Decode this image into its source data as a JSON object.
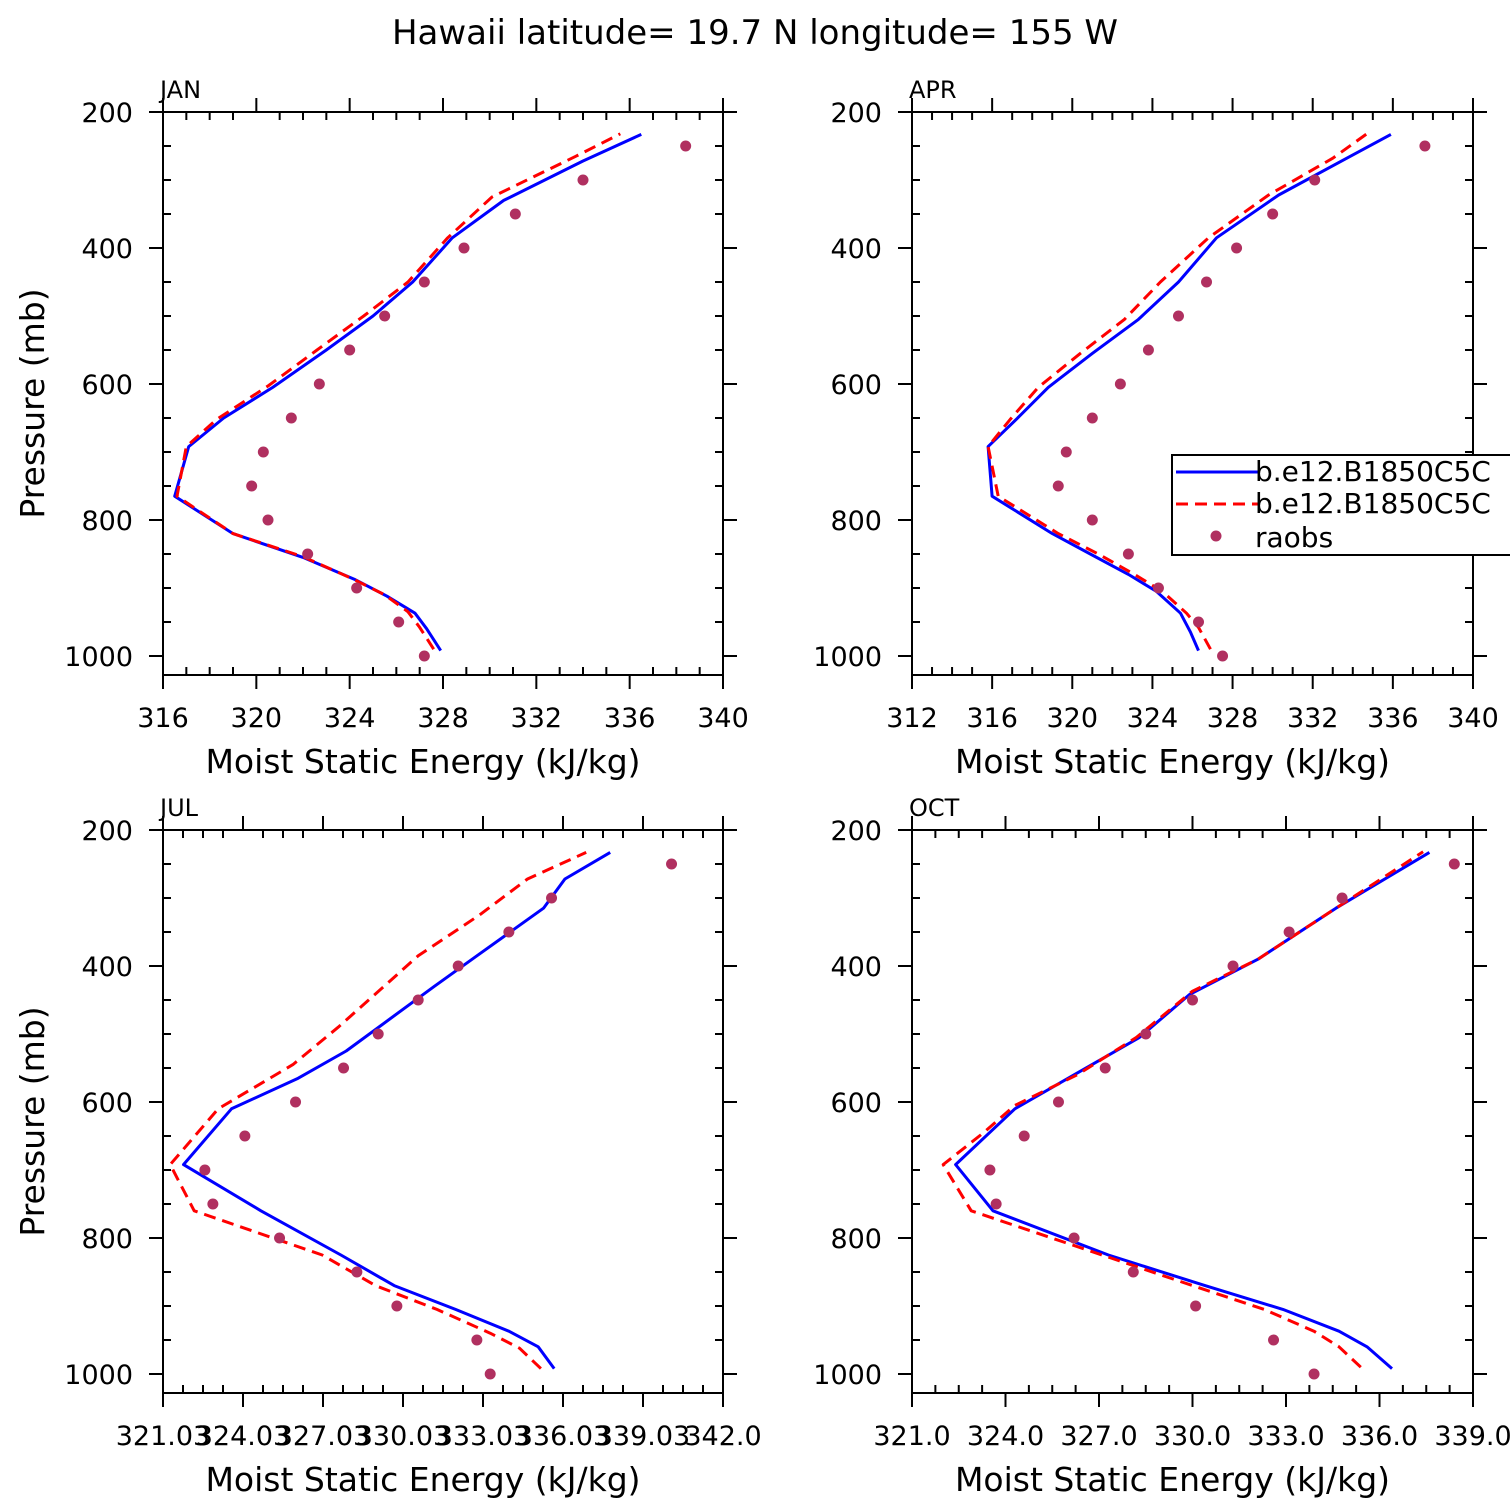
{
  "title": "Hawaii  latitude= 19.7 N longitude= 155 W",
  "colors": {
    "model_a": "#0000ff",
    "model_b": "#ff0000",
    "raobs": "#b03060"
  },
  "legend": {
    "entries": [
      {
        "label": "b.e12.B1850C5C",
        "style": "solid-blue"
      },
      {
        "label": "b.e12.B1850C5C",
        "style": "dashed-red"
      },
      {
        "label": "raobs",
        "style": "dot-magenta"
      }
    ]
  },
  "chart_data": [
    {
      "type": "line",
      "panel": "JAN",
      "xlabel": "Moist Static Energy (kJ/kg)",
      "ylabel": "Pressure (mb)",
      "xlim": [
        316,
        340
      ],
      "xticks": [
        316,
        320,
        324,
        328,
        332,
        336,
        340
      ],
      "xtick_labels": [
        "316",
        "320",
        "324",
        "328",
        "332",
        "336",
        "340"
      ],
      "ylim": [
        200,
        1000
      ],
      "yticks": [
        200,
        400,
        600,
        800,
        1000
      ],
      "series": [
        {
          "name": "b.e12.B1850C5C",
          "style": "solid",
          "points": [
            [
              327.9,
              992
            ],
            [
              327.3,
              960
            ],
            [
              326.8,
              937
            ],
            [
              325.6,
              912
            ],
            [
              324.2,
              887
            ],
            [
              322.0,
              855
            ],
            [
              319.0,
              820
            ],
            [
              316.5,
              765
            ],
            [
              317.1,
              692
            ],
            [
              318.6,
              650
            ],
            [
              320.7,
              605
            ],
            [
              323.0,
              550
            ],
            [
              325.0,
              500
            ],
            [
              326.7,
              450
            ],
            [
              328.4,
              385
            ],
            [
              330.6,
              330
            ],
            [
              334.0,
              272
            ],
            [
              336.5,
              233
            ]
          ]
        },
        {
          "name": "b.e12.B1850C5C",
          "style": "dashed",
          "points": [
            [
              327.6,
              990
            ],
            [
              327.0,
              958
            ],
            [
              326.5,
              935
            ],
            [
              325.5,
              910
            ],
            [
              324.1,
              886
            ],
            [
              322.0,
              854
            ],
            [
              319.0,
              820
            ],
            [
              316.6,
              765
            ],
            [
              317.0,
              692
            ],
            [
              318.3,
              652
            ],
            [
              320.5,
              603
            ],
            [
              322.6,
              550
            ],
            [
              324.6,
              500
            ],
            [
              326.5,
              450
            ],
            [
              328.2,
              385
            ],
            [
              330.1,
              325
            ],
            [
              333.7,
              265
            ],
            [
              335.6,
              232
            ]
          ]
        },
        {
          "name": "raobs",
          "style": "dots",
          "points": [
            [
              338.4,
              250
            ],
            [
              334.0,
              300
            ],
            [
              331.1,
              350
            ],
            [
              328.9,
              400
            ],
            [
              327.2,
              450
            ],
            [
              325.5,
              500
            ],
            [
              324.0,
              550
            ],
            [
              322.7,
              600
            ],
            [
              321.5,
              650
            ],
            [
              320.3,
              700
            ],
            [
              319.8,
              750
            ],
            [
              320.5,
              800
            ],
            [
              322.2,
              850
            ],
            [
              324.3,
              900
            ],
            [
              326.1,
              950
            ],
            [
              327.2,
              1000
            ]
          ]
        }
      ]
    },
    {
      "type": "line",
      "panel": "APR",
      "xlabel": "Moist Static Energy (kJ/kg)",
      "ylabel": "",
      "xlim": [
        312,
        340
      ],
      "xticks": [
        312,
        316,
        320,
        324,
        328,
        332,
        336,
        340
      ],
      "xtick_labels": [
        "312",
        "316",
        "320",
        "324",
        "328",
        "332",
        "336",
        "340"
      ],
      "ylim": [
        200,
        1000
      ],
      "yticks": [
        200,
        400,
        600,
        800,
        1000
      ],
      "series": [
        {
          "name": "b.e12.B1850C5C",
          "style": "solid",
          "points": [
            [
              326.3,
              992
            ],
            [
              325.9,
              965
            ],
            [
              325.4,
              937
            ],
            [
              324.2,
              905
            ],
            [
              322.8,
              880
            ],
            [
              320.9,
              850
            ],
            [
              319.0,
              820
            ],
            [
              316.0,
              765
            ],
            [
              315.8,
              692
            ],
            [
              317.2,
              652
            ],
            [
              318.8,
              605
            ],
            [
              321.0,
              555
            ],
            [
              323.3,
              505
            ],
            [
              325.3,
              450
            ],
            [
              327.2,
              385
            ],
            [
              330.3,
              322
            ],
            [
              333.7,
              268
            ],
            [
              335.9,
              233
            ]
          ]
        },
        {
          "name": "b.e12.B1850C5C",
          "style": "dashed",
          "points": [
            [
              326.9,
              990
            ],
            [
              326.3,
              958
            ],
            [
              325.7,
              937
            ],
            [
              324.5,
              905
            ],
            [
              323.1,
              880
            ],
            [
              321.3,
              850
            ],
            [
              319.3,
              820
            ],
            [
              316.3,
              765
            ],
            [
              315.8,
              692
            ],
            [
              316.9,
              652
            ],
            [
              318.3,
              605
            ],
            [
              320.4,
              555
            ],
            [
              322.6,
              505
            ],
            [
              324.4,
              450
            ],
            [
              326.8,
              385
            ],
            [
              329.8,
              322
            ],
            [
              333.0,
              268
            ],
            [
              334.7,
              232
            ]
          ]
        },
        {
          "name": "raobs",
          "style": "dots",
          "points": [
            [
              337.6,
              250
            ],
            [
              332.1,
              300
            ],
            [
              330.0,
              350
            ],
            [
              328.2,
              400
            ],
            [
              326.7,
              450
            ],
            [
              325.3,
              500
            ],
            [
              323.8,
              550
            ],
            [
              322.4,
              600
            ],
            [
              321.0,
              650
            ],
            [
              319.7,
              700
            ],
            [
              319.3,
              750
            ],
            [
              321.0,
              800
            ],
            [
              322.8,
              850
            ],
            [
              324.3,
              900
            ],
            [
              326.3,
              950
            ],
            [
              327.5,
              1000
            ]
          ]
        }
      ]
    },
    {
      "type": "line",
      "panel": "JUL",
      "xlabel": "Moist Static Energy (kJ/kg)",
      "ylabel": "Pressure (mb)",
      "xlim": [
        321.03,
        342.03
      ],
      "xticks": [
        321.03,
        324.03,
        327.03,
        330.03,
        333.03,
        336.03,
        339.03,
        342.03
      ],
      "xtick_labels": [
        "321.03",
        "324.03",
        "327.03",
        "330.03",
        "333.03",
        "336.03",
        "339.03",
        "342.0"
      ],
      "ylim": [
        200,
        1000
      ],
      "yticks": [
        200,
        400,
        600,
        800,
        1000
      ],
      "series": [
        {
          "name": "b.e12.B1850C5C",
          "style": "solid",
          "points": [
            [
              335.7,
              992
            ],
            [
              335.1,
              960
            ],
            [
              334.0,
              937
            ],
            [
              332.0,
              905
            ],
            [
              329.7,
              870
            ],
            [
              327.7,
              825
            ],
            [
              324.7,
              760
            ],
            [
              321.8,
              692
            ],
            [
              323.6,
              610
            ],
            [
              326.1,
              565
            ],
            [
              327.9,
              525
            ],
            [
              331.2,
              430
            ],
            [
              332.8,
              385
            ],
            [
              335.3,
              315
            ],
            [
              336.1,
              272
            ],
            [
              337.8,
              233
            ]
          ]
        },
        {
          "name": "b.e12.B1850C5C",
          "style": "dashed",
          "points": [
            [
              335.2,
              992
            ],
            [
              334.4,
              962
            ],
            [
              333.3,
              940
            ],
            [
              331.3,
              905
            ],
            [
              329.0,
              870
            ],
            [
              327.0,
              825
            ],
            [
              322.2,
              760
            ],
            [
              321.3,
              692
            ],
            [
              323.1,
              610
            ],
            [
              325.9,
              545
            ],
            [
              327.6,
              490
            ],
            [
              330.6,
              385
            ],
            [
              332.9,
              325
            ],
            [
              334.7,
              272
            ],
            [
              336.9,
              233
            ]
          ]
        },
        {
          "name": "raobs",
          "style": "dots",
          "points": [
            [
              340.1,
              250
            ],
            [
              335.6,
              300
            ],
            [
              334.0,
              350
            ],
            [
              332.1,
              400
            ],
            [
              330.6,
              450
            ],
            [
              329.1,
              500
            ],
            [
              327.8,
              550
            ],
            [
              326.0,
              600
            ],
            [
              324.1,
              650
            ],
            [
              322.6,
              700
            ],
            [
              322.9,
              750
            ],
            [
              325.4,
              800
            ],
            [
              328.3,
              850
            ],
            [
              329.8,
              900
            ],
            [
              332.8,
              950
            ],
            [
              333.3,
              1000
            ]
          ]
        }
      ]
    },
    {
      "type": "line",
      "panel": "OCT",
      "xlabel": "Moist Static Energy (kJ/kg)",
      "ylabel": "",
      "xlim": [
        321.0,
        339.0
      ],
      "xticks": [
        321,
        324,
        327,
        330,
        333,
        336,
        339
      ],
      "xtick_labels": [
        "321.0",
        "324.0",
        "327.0",
        "330.0",
        "333.0",
        "336.0",
        "339.0"
      ],
      "ylim": [
        200,
        1000
      ],
      "yticks": [
        200,
        400,
        600,
        800,
        1000
      ],
      "series": [
        {
          "name": "b.e12.B1850C5C",
          "style": "solid",
          "points": [
            [
              336.4,
              992
            ],
            [
              335.6,
              960
            ],
            [
              334.7,
              937
            ],
            [
              332.9,
              905
            ],
            [
              330.4,
              870
            ],
            [
              327.3,
              825
            ],
            [
              323.6,
              760
            ],
            [
              322.4,
              692
            ],
            [
              324.3,
              610
            ],
            [
              326.2,
              560
            ],
            [
              328.3,
              505
            ],
            [
              329.9,
              442
            ],
            [
              332.1,
              390
            ],
            [
              334.6,
              315
            ],
            [
              337.6,
              233
            ]
          ]
        },
        {
          "name": "b.e12.B1850C5C",
          "style": "dashed",
          "points": [
            [
              335.4,
              990
            ],
            [
              334.7,
              960
            ],
            [
              333.9,
              937
            ],
            [
              332.3,
              905
            ],
            [
              330.0,
              870
            ],
            [
              327.1,
              825
            ],
            [
              322.9,
              760
            ],
            [
              322.0,
              692
            ],
            [
              323.3,
              645
            ],
            [
              324.3,
              605
            ],
            [
              326.3,
              560
            ],
            [
              328.2,
              505
            ],
            [
              330.0,
              437
            ],
            [
              332.1,
              390
            ],
            [
              334.6,
              315
            ],
            [
              337.4,
              232
            ]
          ]
        },
        {
          "name": "raobs",
          "style": "dots",
          "points": [
            [
              338.4,
              250
            ],
            [
              334.8,
              300
            ],
            [
              333.1,
              350
            ],
            [
              331.3,
              400
            ],
            [
              330.0,
              450
            ],
            [
              328.5,
              500
            ],
            [
              327.2,
              550
            ],
            [
              325.7,
              600
            ],
            [
              324.6,
              650
            ],
            [
              323.5,
              700
            ],
            [
              323.7,
              750
            ],
            [
              326.2,
              800
            ],
            [
              328.1,
              850
            ],
            [
              330.1,
              900
            ],
            [
              332.6,
              950
            ],
            [
              333.9,
              1000
            ]
          ]
        }
      ]
    }
  ]
}
